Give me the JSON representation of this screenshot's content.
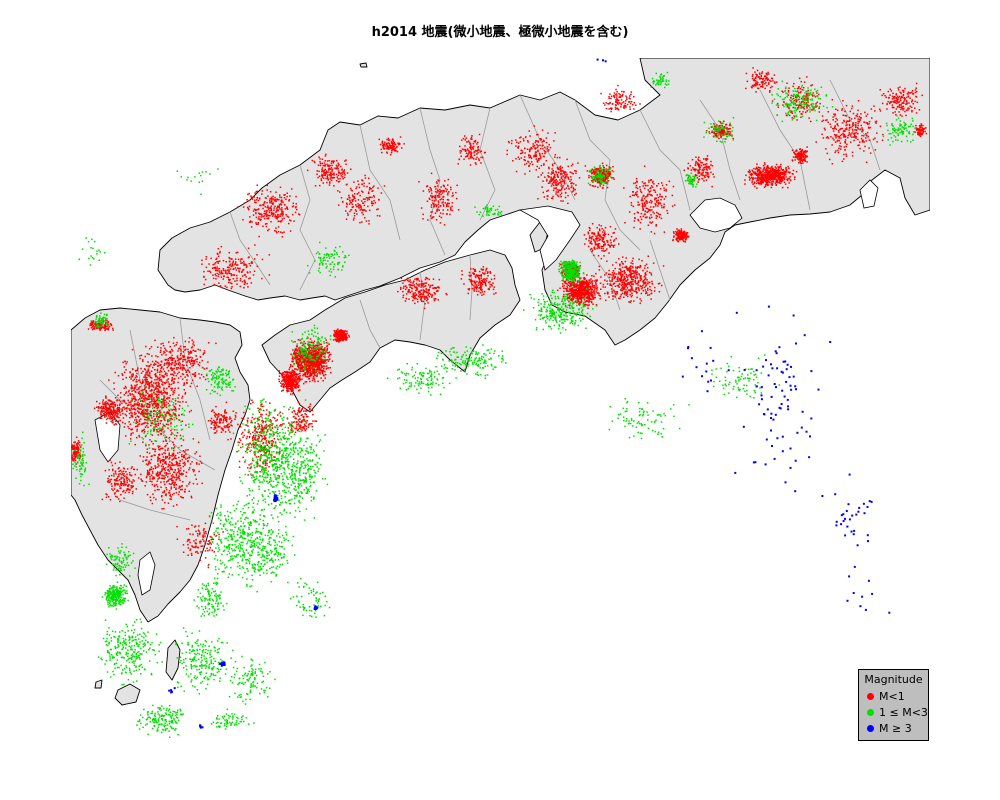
{
  "title": "h2014 地震(微小地震、極微小地震を含む)",
  "colors": {
    "land": "#e3e3e3",
    "coast": "#000000",
    "border": "#9a9a9a",
    "legend_bg": "#bebebe",
    "small": "#ff0000",
    "medium": "#00e000",
    "large": "#0000ff"
  },
  "map": {
    "region": "Western Japan (Kyushu, Shikoku, Chugoku, Kinki, Chubu)",
    "point_layers": [
      "M<1",
      "1 ≤ M<3",
      "M ≥ 3"
    ]
  },
  "legend": {
    "title": "Magnitude",
    "items": [
      {
        "label": "M<1",
        "color": "#ff0000",
        "icon": "red-dot-icon"
      },
      {
        "label": "1 ≤ M<3",
        "color": "#00e000",
        "icon": "green-dot-icon"
      },
      {
        "label": "M ≥ 3",
        "color": "#0000ff",
        "icon": "blue-dot-icon"
      }
    ]
  }
}
